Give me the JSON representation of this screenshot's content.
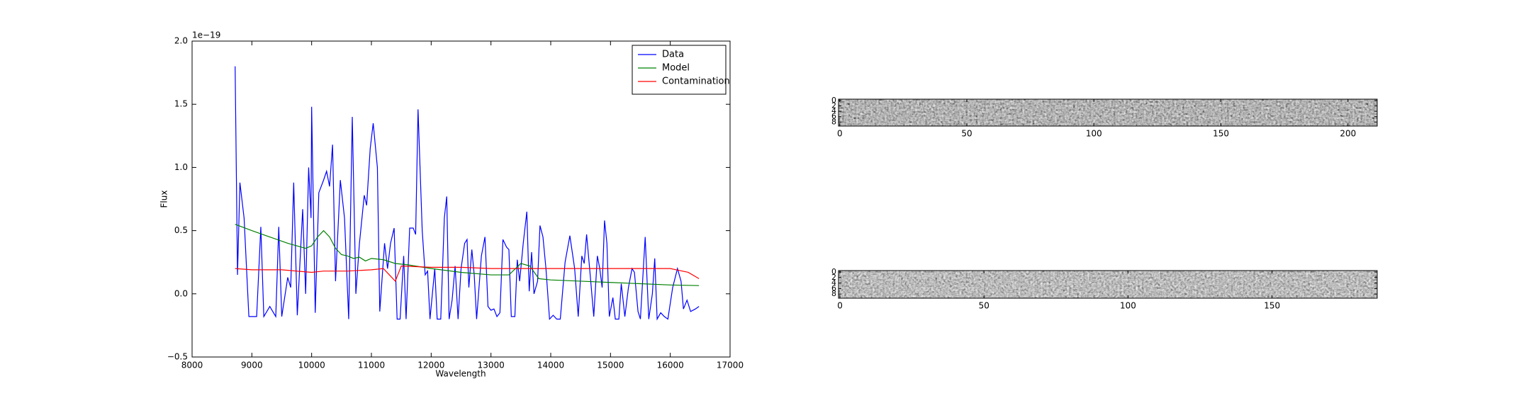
{
  "chart_data": {
    "type": "line",
    "xlabel": "Wavelength",
    "ylabel": "Flux",
    "offset_text": "1e−19",
    "xlim": [
      8000,
      17000
    ],
    "xticks": [
      8000,
      9000,
      10000,
      11000,
      12000,
      13000,
      14000,
      15000,
      16000,
      17000
    ],
    "ylim": [
      -0.5,
      2.0
    ],
    "yticks": [
      {
        "value": -0.5,
        "label": "−0.5"
      },
      {
        "value": 0,
        "label": "0.0"
      },
      {
        "value": 0.5,
        "label": "0.5"
      },
      {
        "value": 1,
        "label": "1.0"
      },
      {
        "value": 1.5,
        "label": "1.5"
      },
      {
        "value": 2,
        "label": "2.0"
      }
    ],
    "legend": "upper right",
    "series": [
      {
        "name": "Data",
        "color": "#0000ff",
        "x": [
          8720,
          8760,
          8800,
          8870,
          8950,
          9080,
          9150,
          9200,
          9300,
          9400,
          9450,
          9500,
          9600,
          9650,
          9700,
          9760,
          9850,
          9900,
          9950,
          9990,
          10000,
          10060,
          10120,
          10200,
          10250,
          10300,
          10350,
          10400,
          10480,
          10550,
          10620,
          10680,
          10740,
          10800,
          10880,
          10920,
          10980,
          11030,
          11100,
          11140,
          11220,
          11270,
          11320,
          11380,
          11430,
          11480,
          11540,
          11580,
          11640,
          11700,
          11740,
          11780,
          11850,
          11900,
          11940,
          11980,
          12060,
          12100,
          12160,
          12220,
          12260,
          12300,
          12350,
          12400,
          12450,
          12500,
          12560,
          12600,
          12630,
          12680,
          12720,
          12760,
          12840,
          12900,
          12950,
          13000,
          13050,
          13100,
          13150,
          13200,
          13260,
          13300,
          13340,
          13400,
          13440,
          13480,
          13540,
          13600,
          13640,
          13680,
          13720,
          13780,
          13820,
          13870,
          13920,
          13980,
          14040,
          14100,
          14160,
          14240,
          14320,
          14400,
          14460,
          14520,
          14560,
          14600,
          14660,
          14720,
          14780,
          14820,
          14860,
          14900,
          14940,
          14980,
          15040,
          15080,
          15140,
          15180,
          15240,
          15300,
          15360,
          15400,
          15460,
          15500,
          15580,
          15640,
          15700,
          15740,
          15780,
          15840,
          15900,
          15960,
          16040,
          16120,
          16180,
          16220,
          16280,
          16340,
          16420,
          16480
        ],
        "values": [
          1.8,
          0.15,
          0.88,
          0.6,
          -0.18,
          -0.18,
          0.53,
          -0.18,
          -0.1,
          -0.18,
          0.53,
          -0.18,
          0.13,
          0.05,
          0.88,
          -0.17,
          0.67,
          0.0,
          1.0,
          0.6,
          1.48,
          -0.15,
          0.8,
          0.9,
          0.97,
          0.85,
          1.18,
          0.1,
          0.9,
          0.6,
          -0.2,
          1.4,
          0.0,
          0.4,
          0.78,
          0.7,
          1.15,
          1.35,
          1.0,
          -0.14,
          0.4,
          0.2,
          0.4,
          0.52,
          -0.2,
          -0.2,
          0.3,
          -0.2,
          0.52,
          0.52,
          0.47,
          1.46,
          0.5,
          0.15,
          0.18,
          -0.2,
          0.2,
          -0.2,
          -0.2,
          0.6,
          0.77,
          -0.2,
          -0.05,
          0.22,
          -0.2,
          0.2,
          0.4,
          0.43,
          0.05,
          0.35,
          0.15,
          -0.2,
          0.3,
          0.45,
          -0.1,
          -0.13,
          -0.12,
          -0.18,
          -0.15,
          0.43,
          0.37,
          0.35,
          -0.18,
          -0.18,
          0.27,
          0.1,
          0.4,
          0.65,
          0.02,
          0.33,
          0.0,
          0.1,
          0.54,
          0.45,
          0.2,
          -0.2,
          -0.17,
          -0.2,
          -0.2,
          0.25,
          0.46,
          0.2,
          -0.18,
          0.3,
          0.24,
          0.47,
          0.15,
          -0.18,
          0.3,
          0.2,
          0.05,
          0.58,
          0.4,
          -0.18,
          -0.03,
          -0.2,
          -0.2,
          0.08,
          -0.18,
          0.05,
          0.2,
          0.17,
          -0.14,
          -0.2,
          0.45,
          -0.2,
          0.0,
          0.28,
          -0.2,
          -0.15,
          -0.18,
          -0.2,
          0.05,
          0.2,
          0.1,
          -0.12,
          -0.05,
          -0.14,
          -0.12,
          -0.1
        ]
      },
      {
        "name": "Model",
        "color": "#008000",
        "x": [
          8720,
          9000,
          9300,
          9600,
          9900,
          10000,
          10100,
          10200,
          10300,
          10400,
          10500,
          10600,
          10700,
          10800,
          10900,
          11000,
          11200,
          11400,
          11600,
          12000,
          12500,
          13000,
          13300,
          13500,
          13650,
          13800,
          14000,
          14500,
          15000,
          15500,
          16000,
          16480
        ],
        "values": [
          0.55,
          0.5,
          0.45,
          0.4,
          0.36,
          0.38,
          0.45,
          0.5,
          0.45,
          0.36,
          0.31,
          0.3,
          0.28,
          0.29,
          0.26,
          0.28,
          0.27,
          0.24,
          0.23,
          0.2,
          0.17,
          0.15,
          0.15,
          0.24,
          0.22,
          0.12,
          0.11,
          0.1,
          0.09,
          0.08,
          0.07,
          0.065
        ]
      },
      {
        "name": "Contamination",
        "color": "#ff0000",
        "x": [
          8720,
          9000,
          9500,
          10000,
          10200,
          10600,
          11000,
          11200,
          11300,
          11400,
          11500,
          12000,
          12500,
          13000,
          13500,
          14000,
          15000,
          15500,
          16000,
          16300,
          16480
        ],
        "values": [
          0.2,
          0.19,
          0.19,
          0.17,
          0.18,
          0.18,
          0.19,
          0.2,
          0.15,
          0.1,
          0.22,
          0.21,
          0.21,
          0.2,
          0.2,
          0.2,
          0.2,
          0.2,
          0.2,
          0.17,
          0.12
        ]
      }
    ]
  },
  "images": [
    {
      "xlim": [
        -0.5,
        211.5
      ],
      "xticks": [
        0,
        50,
        100,
        150,
        200
      ],
      "ylim": [
        9.5,
        -0.5
      ],
      "yticks": [
        0,
        2,
        4,
        6,
        8
      ]
    },
    {
      "xlim": [
        -0.5,
        186.5
      ],
      "xticks": [
        0,
        50,
        100,
        150
      ],
      "ylim": [
        9.5,
        -0.5
      ],
      "yticks": [
        0,
        2,
        4,
        6,
        8
      ]
    }
  ]
}
